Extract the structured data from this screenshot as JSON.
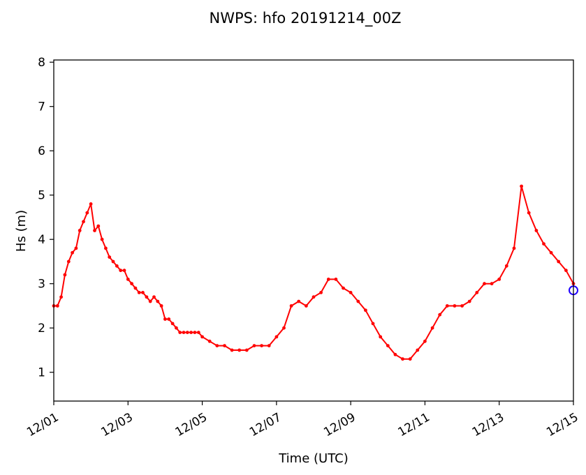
{
  "chart_data": {
    "type": "line",
    "title": "NWPS: hfo 20191214_00Z",
    "xlabel": "Time (UTC)",
    "ylabel": "Hs (m)",
    "x_unit": "days since 12/01 00Z",
    "xlim": [
      0,
      14
    ],
    "ylim": [
      0.35,
      8.05
    ],
    "x_ticks": [
      {
        "value": 0,
        "label": "12/01"
      },
      {
        "value": 2,
        "label": "12/03"
      },
      {
        "value": 4,
        "label": "12/05"
      },
      {
        "value": 6,
        "label": "12/07"
      },
      {
        "value": 8,
        "label": "12/09"
      },
      {
        "value": 10,
        "label": "12/11"
      },
      {
        "value": 12,
        "label": "12/13"
      },
      {
        "value": 14,
        "label": "12/15"
      }
    ],
    "y_ticks": [
      1,
      2,
      3,
      4,
      5,
      6,
      7,
      8
    ],
    "grid": false,
    "series": [
      {
        "color": "#ff0000",
        "marker": "dot",
        "x": [
          0.0,
          0.1,
          0.2,
          0.3,
          0.4,
          0.5,
          0.6,
          0.7,
          0.8,
          0.9,
          1.0,
          1.1,
          1.2,
          1.3,
          1.4,
          1.5,
          1.6,
          1.7,
          1.8,
          1.9,
          2.0,
          2.1,
          2.2,
          2.3,
          2.4,
          2.5,
          2.6,
          2.7,
          2.8,
          2.9,
          3.0,
          3.1,
          3.2,
          3.3,
          3.4,
          3.5,
          3.6,
          3.7,
          3.8,
          3.9,
          4.0,
          4.2,
          4.4,
          4.6,
          4.8,
          5.0,
          5.2,
          5.4,
          5.6,
          5.8,
          6.0,
          6.2,
          6.4,
          6.6,
          6.8,
          7.0,
          7.2,
          7.4,
          7.6,
          7.8,
          8.0,
          8.2,
          8.4,
          8.6,
          8.8,
          9.0,
          9.2,
          9.4,
          9.6,
          9.8,
          10.0,
          10.2,
          10.4,
          10.6,
          10.8,
          11.0,
          11.2,
          11.4,
          11.6,
          11.8,
          12.0,
          12.2,
          12.4,
          12.6,
          12.8,
          13.0,
          13.2,
          13.4,
          13.6,
          13.8,
          14.0
        ],
        "values": [
          2.5,
          2.5,
          2.7,
          3.2,
          3.5,
          3.7,
          3.8,
          4.2,
          4.4,
          4.6,
          4.8,
          4.2,
          4.3,
          4.0,
          3.8,
          3.6,
          3.5,
          3.4,
          3.3,
          3.3,
          3.1,
          3.0,
          2.9,
          2.8,
          2.8,
          2.7,
          2.6,
          2.7,
          2.6,
          2.5,
          2.2,
          2.2,
          2.1,
          2.0,
          1.9,
          1.9,
          1.9,
          1.9,
          1.9,
          1.9,
          1.8,
          1.7,
          1.6,
          1.6,
          1.5,
          1.5,
          1.5,
          1.6,
          1.6,
          1.6,
          1.8,
          2.0,
          2.5,
          2.6,
          2.5,
          2.7,
          2.8,
          3.1,
          3.1,
          2.9,
          2.8,
          2.6,
          2.4,
          2.1,
          1.8,
          1.6,
          1.4,
          1.3,
          1.3,
          1.5,
          1.7,
          2.0,
          2.3,
          2.5,
          2.5,
          2.5,
          2.6,
          2.8,
          3.0,
          3.0,
          3.1,
          3.4,
          3.8,
          5.2,
          4.6,
          4.2,
          3.9,
          3.7,
          3.5,
          3.3,
          3.0
        ]
      }
    ],
    "end_marker": {
      "x": 14.0,
      "value": 2.85,
      "color": "#1f00ff"
    }
  }
}
